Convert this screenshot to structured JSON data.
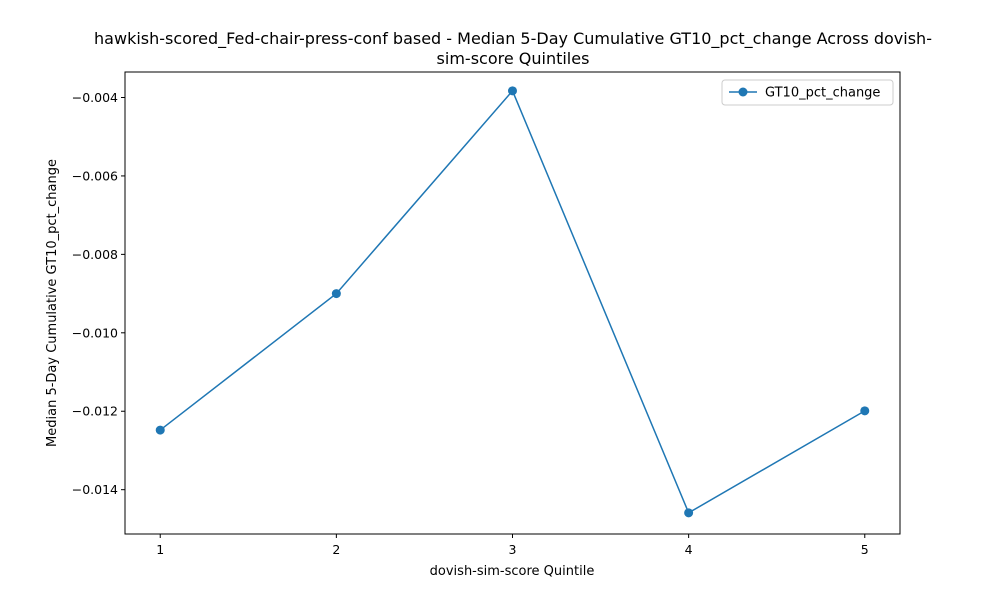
{
  "chart_data": {
    "type": "line",
    "title_lines": [
      "hawkish-scored_Fed-chair-press-conf based - Median 5-Day Cumulative GT10_pct_change Across dovish-",
      "sim-score Quintiles"
    ],
    "xlabel": "dovish-sim-score Quintile",
    "ylabel": "Median 5-Day Cumulative GT10_pct_change",
    "x": [
      1,
      2,
      3,
      4,
      5
    ],
    "x_ticks": [
      "1",
      "2",
      "3",
      "4",
      "5"
    ],
    "xlim": [
      0.8,
      5.2
    ],
    "ylim": [
      -0.01513,
      -0.00335
    ],
    "y_ticks": [
      -0.004,
      -0.006,
      -0.008,
      -0.01,
      -0.012,
      -0.014
    ],
    "y_tick_labels": [
      "−0.004",
      "−0.006",
      "−0.008",
      "−0.010",
      "−0.012",
      "−0.014"
    ],
    "series": [
      {
        "name": "GT10_pct_change",
        "values": [
          -0.01248,
          -0.009,
          -0.00383,
          -0.01459,
          -0.01199
        ],
        "color": "#1f77b4",
        "marker": "circle"
      }
    ],
    "legend": {
      "position": "top-right"
    },
    "grid": false
  }
}
